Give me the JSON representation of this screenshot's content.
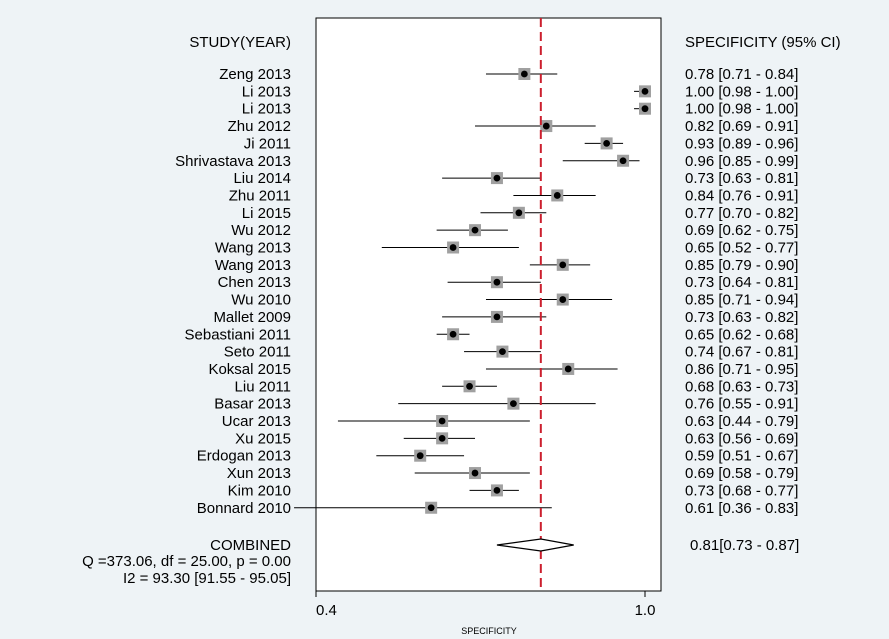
{
  "chart_data": {
    "type": "forest",
    "header_left": "STUDY(YEAR)",
    "header_right": "SPECIFICITY (95% CI)",
    "xlabel": "SPECIFICITY",
    "xlim": [
      0.4,
      1.0
    ],
    "x_ticks": [
      "0.4",
      "1.0"
    ],
    "reference_line": 0.81,
    "colors": {
      "reference_line": "#cc1f2e",
      "marker_box": "#a0a0a0",
      "marker_dot": "#000000",
      "plot_bg": "#ffffff",
      "page_bg": "#eef3f6"
    },
    "studies": [
      {
        "name": "Zeng 2013",
        "est": 0.78,
        "lo": 0.71,
        "hi": 0.84,
        "ci": "0.78 [0.71 - 0.84]"
      },
      {
        "name": "Li 2013",
        "est": 1.0,
        "lo": 0.98,
        "hi": 1.0,
        "ci": "1.00 [0.98 - 1.00]"
      },
      {
        "name": "Li  2013",
        "est": 1.0,
        "lo": 0.98,
        "hi": 1.0,
        "ci": "1.00 [0.98 - 1.00]"
      },
      {
        "name": "Zhu 2012",
        "est": 0.82,
        "lo": 0.69,
        "hi": 0.91,
        "ci": "0.82 [0.69 - 0.91]"
      },
      {
        "name": "Ji 2011",
        "est": 0.93,
        "lo": 0.89,
        "hi": 0.96,
        "ci": "0.93 [0.89 - 0.96]"
      },
      {
        "name": "Shrivastava 2013",
        "est": 0.96,
        "lo": 0.85,
        "hi": 0.99,
        "ci": "0.96 [0.85 - 0.99]"
      },
      {
        "name": "Liu 2014",
        "est": 0.73,
        "lo": 0.63,
        "hi": 0.81,
        "ci": "0.73 [0.63 - 0.81]"
      },
      {
        "name": "Zhu 2011",
        "est": 0.84,
        "lo": 0.76,
        "hi": 0.91,
        "ci": "0.84 [0.76 - 0.91]"
      },
      {
        "name": "Li 2015",
        "est": 0.77,
        "lo": 0.7,
        "hi": 0.82,
        "ci": "0.77 [0.70 - 0.82]"
      },
      {
        "name": "Wu 2012",
        "est": 0.69,
        "lo": 0.62,
        "hi": 0.75,
        "ci": "0.69 [0.62 - 0.75]"
      },
      {
        "name": "Wang 2013",
        "est": 0.65,
        "lo": 0.52,
        "hi": 0.77,
        "ci": "0.65 [0.52 - 0.77]"
      },
      {
        "name": "Wang 2013",
        "est": 0.85,
        "lo": 0.79,
        "hi": 0.9,
        "ci": "0.85 [0.79 - 0.90]"
      },
      {
        "name": "Chen 2013",
        "est": 0.73,
        "lo": 0.64,
        "hi": 0.81,
        "ci": "0.73 [0.64 - 0.81]"
      },
      {
        "name": "Wu 2010",
        "est": 0.85,
        "lo": 0.71,
        "hi": 0.94,
        "ci": "0.85 [0.71 - 0.94]"
      },
      {
        "name": "Mallet 2009",
        "est": 0.73,
        "lo": 0.63,
        "hi": 0.82,
        "ci": "0.73 [0.63 - 0.82]"
      },
      {
        "name": "Sebastiani 2011",
        "est": 0.65,
        "lo": 0.62,
        "hi": 0.68,
        "ci": "0.65 [0.62 - 0.68]"
      },
      {
        "name": "Seto 2011",
        "est": 0.74,
        "lo": 0.67,
        "hi": 0.81,
        "ci": "0.74 [0.67 - 0.81]"
      },
      {
        "name": "Koksal  2015",
        "est": 0.86,
        "lo": 0.71,
        "hi": 0.95,
        "ci": "0.86 [0.71 - 0.95]"
      },
      {
        "name": "Liu 2011",
        "est": 0.68,
        "lo": 0.63,
        "hi": 0.73,
        "ci": "0.68 [0.63 - 0.73]"
      },
      {
        "name": "Basar 2013",
        "est": 0.76,
        "lo": 0.55,
        "hi": 0.91,
        "ci": "0.76 [0.55 - 0.91]"
      },
      {
        "name": "Ucar 2013",
        "est": 0.63,
        "lo": 0.44,
        "hi": 0.79,
        "ci": "0.63 [0.44 - 0.79]"
      },
      {
        "name": "Xu 2015",
        "est": 0.63,
        "lo": 0.56,
        "hi": 0.69,
        "ci": "0.63 [0.56 - 0.69]"
      },
      {
        "name": "Erdogan 2013",
        "est": 0.59,
        "lo": 0.51,
        "hi": 0.67,
        "ci": "0.59 [0.51 - 0.67]"
      },
      {
        "name": "Xun 2013",
        "est": 0.69,
        "lo": 0.58,
        "hi": 0.79,
        "ci": "0.69 [0.58 - 0.79]"
      },
      {
        "name": "Kim 2010",
        "est": 0.73,
        "lo": 0.68,
        "hi": 0.77,
        "ci": "0.73 [0.68 - 0.77]"
      },
      {
        "name": "Bonnard 2010",
        "est": 0.61,
        "lo": 0.36,
        "hi": 0.83,
        "ci": "0.61 [0.36 - 0.83]"
      }
    ],
    "combined": {
      "name": "COMBINED",
      "est": 0.81,
      "lo": 0.73,
      "hi": 0.87,
      "ci": "0.81[0.73 - 0.87]"
    },
    "heterogeneity_q": "Q =373.06, df = 25.00, p =  0.00",
    "heterogeneity_i2": "I2 = 93.30 [91.55 - 95.05]"
  }
}
